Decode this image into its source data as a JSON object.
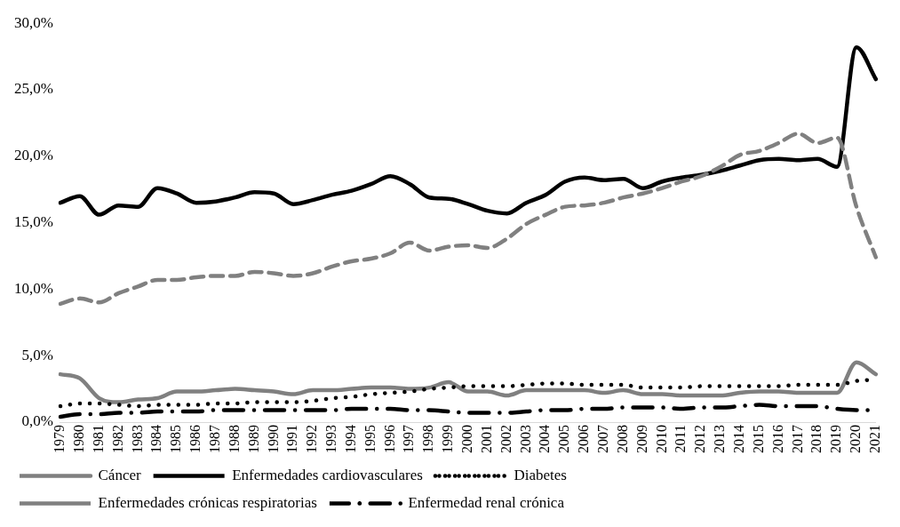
{
  "chart_data": {
    "type": "line",
    "categories": [
      "1979",
      "1980",
      "1981",
      "1982",
      "1983",
      "1984",
      "1985",
      "1986",
      "1987",
      "1988",
      "1989",
      "1990",
      "1991",
      "1992",
      "1993",
      "1994",
      "1995",
      "1996",
      "1997",
      "1998",
      "1999",
      "2000",
      "2001",
      "2002",
      "2003",
      "2004",
      "2005",
      "2006",
      "2007",
      "2008",
      "2009",
      "2010",
      "2011",
      "2012",
      "2013",
      "2014",
      "2015",
      "2016",
      "2017",
      "2018",
      "2019",
      "2020",
      "2021"
    ],
    "ylim": [
      0,
      30
    ],
    "yticks": [
      {
        "value": 0,
        "label": "0,0%"
      },
      {
        "value": 5,
        "label": "5,0%"
      },
      {
        "value": 10,
        "label": "10,0%"
      },
      {
        "value": 15,
        "label": "15,0%"
      },
      {
        "value": 20,
        "label": "20,0%"
      },
      {
        "value": 25,
        "label": "25,0%"
      },
      {
        "value": 30,
        "label": "30,0%"
      }
    ],
    "grid": false,
    "legend": "bottom",
    "marker": "none",
    "series": [
      {
        "name": "Cáncer",
        "color": "#808080",
        "line_style": "dashed",
        "values": [
          8.9,
          9.3,
          9.0,
          9.7,
          10.2,
          10.7,
          10.7,
          10.9,
          11.0,
          11.0,
          11.3,
          11.2,
          11.0,
          11.2,
          11.7,
          12.1,
          12.3,
          12.7,
          13.5,
          12.9,
          13.2,
          13.3,
          13.1,
          13.8,
          14.9,
          15.6,
          16.2,
          16.3,
          16.5,
          16.9,
          17.2,
          17.6,
          18.1,
          18.5,
          19.2,
          20.1,
          20.4,
          21.0,
          21.7,
          21.0,
          21.4,
          16.2,
          12.4
        ]
      },
      {
        "name": "Enfermedades cardiovasculares",
        "color": "#000000",
        "line_style": "solid",
        "values": [
          16.5,
          17.0,
          15.6,
          16.3,
          16.2,
          17.6,
          17.2,
          16.5,
          16.6,
          16.9,
          17.3,
          17.2,
          16.4,
          16.7,
          17.1,
          17.4,
          17.9,
          18.5,
          17.9,
          16.9,
          16.8,
          16.4,
          15.9,
          15.7,
          16.5,
          17.1,
          18.1,
          18.4,
          18.2,
          18.3,
          17.6,
          18.1,
          18.4,
          18.6,
          18.9,
          19.3,
          19.7,
          19.8,
          19.7,
          19.8,
          19.2,
          28.2,
          25.8
        ]
      },
      {
        "name": "Diabetes",
        "color": "#000000",
        "line_style": "dotted",
        "values": [
          1.2,
          1.4,
          1.4,
          1.3,
          1.2,
          1.3,
          1.3,
          1.3,
          1.4,
          1.4,
          1.5,
          1.5,
          1.5,
          1.6,
          1.8,
          1.9,
          2.1,
          2.2,
          2.3,
          2.5,
          2.6,
          2.7,
          2.7,
          2.7,
          2.8,
          2.9,
          2.9,
          2.8,
          2.8,
          2.8,
          2.6,
          2.6,
          2.6,
          2.7,
          2.7,
          2.7,
          2.7,
          2.7,
          2.8,
          2.8,
          2.8,
          3.1,
          3.2
        ]
      },
      {
        "name": "Enfermedades crónicas respiratorias",
        "color": "#808080",
        "line_style": "solid",
        "values": [
          3.6,
          3.3,
          1.8,
          1.5,
          1.7,
          1.8,
          2.3,
          2.3,
          2.4,
          2.5,
          2.4,
          2.3,
          2.1,
          2.4,
          2.4,
          2.5,
          2.6,
          2.6,
          2.5,
          2.6,
          3.0,
          2.3,
          2.3,
          2.0,
          2.4,
          2.4,
          2.4,
          2.4,
          2.2,
          2.4,
          2.1,
          2.1,
          2.0,
          2.0,
          2.0,
          2.2,
          2.3,
          2.3,
          2.2,
          2.2,
          2.2,
          4.5,
          3.6
        ]
      },
      {
        "name": "Enfermedad renal crónica",
        "color": "#000000",
        "line_style": "dashdot",
        "values": [
          0.4,
          0.6,
          0.6,
          0.7,
          0.7,
          0.8,
          0.8,
          0.8,
          0.9,
          0.9,
          0.9,
          0.9,
          0.9,
          0.9,
          0.9,
          1.0,
          1.0,
          1.0,
          0.9,
          0.9,
          0.8,
          0.7,
          0.7,
          0.7,
          0.8,
          0.9,
          0.9,
          1.0,
          1.0,
          1.1,
          1.1,
          1.1,
          1.0,
          1.1,
          1.1,
          1.2,
          1.3,
          1.2,
          1.2,
          1.2,
          1.0,
          0.9,
          0.9
        ]
      }
    ]
  }
}
